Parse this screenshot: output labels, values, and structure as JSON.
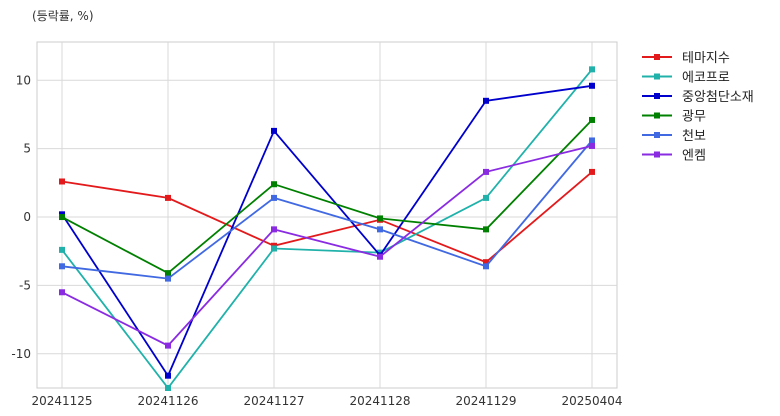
{
  "chart_data": {
    "type": "line",
    "unit_label": "(등락률, %)",
    "categories": [
      "20241125",
      "20241126",
      "20241127",
      "20241128",
      "20241129",
      "20250404"
    ],
    "ylim": [
      -12.5,
      12.8
    ],
    "yticks": [
      -10,
      -5,
      0,
      5,
      10
    ],
    "grid": true,
    "legend_position": "outside-right",
    "series": [
      {
        "name": "테마지수",
        "color": "#e31a1c",
        "values": [
          2.6,
          1.4,
          -2.1,
          -0.2,
          -3.3,
          3.3
        ]
      },
      {
        "name": "에코프로",
        "color": "#20b2aa",
        "values": [
          -2.4,
          -12.5,
          -2.3,
          -2.6,
          1.4,
          10.8
        ]
      },
      {
        "name": "중앙첨단소재",
        "color": "#0000cd",
        "values": [
          0.2,
          -11.6,
          6.3,
          -2.8,
          8.5,
          9.6
        ]
      },
      {
        "name": "광무",
        "color": "#008000",
        "values": [
          0.0,
          -4.1,
          2.4,
          -0.1,
          -0.9,
          7.1
        ]
      },
      {
        "name": "천보",
        "color": "#4169e1",
        "values": [
          -3.6,
          -4.5,
          1.4,
          -0.9,
          -3.6,
          5.6
        ]
      },
      {
        "name": "엔켐",
        "color": "#8a2be2",
        "values": [
          -5.5,
          -9.4,
          -0.9,
          -2.9,
          3.3,
          5.2
        ]
      }
    ]
  }
}
